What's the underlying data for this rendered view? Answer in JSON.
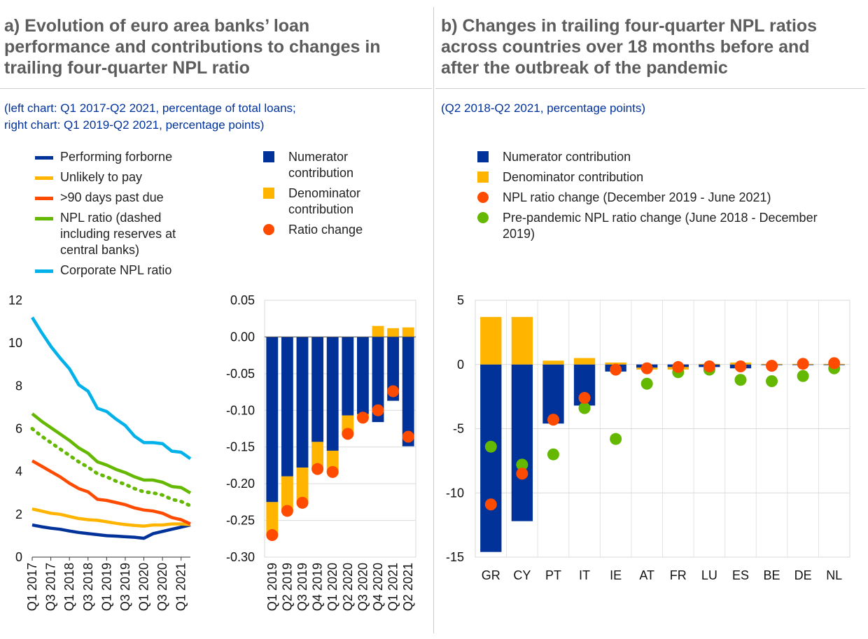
{
  "panel_a": {
    "title": "a) Evolution of euro area banks’ loan performance and contributions to changes in trailing four-quarter NPL ratio",
    "title_lines": [
      "a) Evolution of euro area banks’ loan",
      "performance and contributions to changes in",
      "trailing four-quarter NPL ratio"
    ],
    "subtitle_lines": [
      "(left chart: Q1 2017-Q2 2021, percentage of total loans;",
      "right chart: Q1 2019-Q2 2021, percentage points)"
    ],
    "legend_left": [
      {
        "label_lines": [
          "Performing forborne"
        ],
        "color": "#003299",
        "icon": "line-swatch-icon"
      },
      {
        "label_lines": [
          "Unlikely to pay"
        ],
        "color": "#ffb400",
        "icon": "line-swatch-icon"
      },
      {
        "label_lines": [
          ">90 days past due"
        ],
        "color": "#ff4b00",
        "icon": "line-swatch-icon"
      },
      {
        "label_lines": [
          "NPL ratio (dashed",
          "including reserves at",
          "central banks)"
        ],
        "color": "#65b800",
        "icon": "line-swatch-icon"
      },
      {
        "label_lines": [
          "Corporate NPL ratio"
        ],
        "color": "#00b1ea",
        "icon": "line-swatch-icon"
      }
    ],
    "legend_right": [
      {
        "label_lines": [
          "Numerator",
          "contribution"
        ],
        "color": "#003299",
        "icon": "square-swatch-icon"
      },
      {
        "label_lines": [
          "Denominator",
          "contribution"
        ],
        "color": "#ffb400",
        "icon": "square-swatch-icon"
      },
      {
        "label_lines": [
          "Ratio change"
        ],
        "color": "#ff4b00",
        "icon": "dot-swatch-icon"
      }
    ]
  },
  "panel_b": {
    "title": "b) Changes in trailing four-quarter NPL ratios across countries over 18 months before and after the outbreak of the pandemic",
    "title_lines": [
      "b) Changes in trailing four-quarter NPL ratios",
      "across countries over 18 months before and",
      "after the outbreak of the pandemic"
    ],
    "subtitle_lines": [
      "(Q2 2018-Q2 2021, percentage points)"
    ],
    "legend": [
      {
        "label_lines": [
          "Numerator contribution"
        ],
        "color": "#003299",
        "icon": "square-swatch-icon"
      },
      {
        "label_lines": [
          "Denominator contribution"
        ],
        "color": "#ffb400",
        "icon": "square-swatch-icon"
      },
      {
        "label_lines": [
          "NPL ratio change (December 2019 - June 2021)"
        ],
        "color": "#ff4b00",
        "icon": "dot-swatch-icon"
      },
      {
        "label_lines": [
          "Pre-pandemic NPL ratio change (June 2018 - December",
          "2019)"
        ],
        "color": "#65b800",
        "icon": "dot-swatch-icon"
      }
    ]
  },
  "chart_data": [
    {
      "id": "npl-lines",
      "type": "line",
      "title": "",
      "xlabel": "",
      "ylabel": "",
      "ylim": [
        0,
        12
      ],
      "yticks": [
        "0",
        "2",
        "4",
        "6",
        "8",
        "10",
        "12"
      ],
      "x": [
        "Q1 2017",
        "Q2 2017",
        "Q3 2017",
        "Q4 2017",
        "Q1 2018",
        "Q2 2018",
        "Q3 2018",
        "Q4 2018",
        "Q1 2019",
        "Q2 2019",
        "Q3 2019",
        "Q4 2019",
        "Q1 2020",
        "Q2 2020",
        "Q3 2020",
        "Q4 2020",
        "Q1 2021",
        "Q2 2021"
      ],
      "xtick_labels": [
        "Q1 2017",
        "Q3 2017",
        "Q1 2018",
        "Q3 2018",
        "Q1 2019",
        "Q3 2019",
        "Q1 2020",
        "Q3 2020",
        "Q1 2021"
      ],
      "series": [
        {
          "name": "Performing forborne",
          "color": "#003299",
          "dashed": false,
          "values": [
            1.5,
            1.42,
            1.35,
            1.3,
            1.22,
            1.15,
            1.1,
            1.05,
            1.0,
            0.98,
            0.95,
            0.93,
            0.88,
            1.1,
            1.2,
            1.3,
            1.4,
            1.5
          ]
        },
        {
          "name": "Unlikely to pay",
          "color": "#ffb400",
          "dashed": false,
          "values": [
            2.25,
            2.15,
            2.05,
            2.0,
            1.9,
            1.8,
            1.75,
            1.72,
            1.65,
            1.58,
            1.52,
            1.48,
            1.45,
            1.5,
            1.5,
            1.55,
            1.55,
            1.52
          ]
        },
        {
          "name": ">90 days past due",
          "color": "#ff4b00",
          "dashed": false,
          "values": [
            4.5,
            4.25,
            4.0,
            3.75,
            3.45,
            3.2,
            3.05,
            2.7,
            2.65,
            2.55,
            2.45,
            2.3,
            2.2,
            2.15,
            2.05,
            1.85,
            1.75,
            1.55
          ]
        },
        {
          "name": "NPL ratio",
          "color": "#65b800",
          "dashed": false,
          "values": [
            6.7,
            6.35,
            6.05,
            5.75,
            5.45,
            5.1,
            4.85,
            4.45,
            4.3,
            4.1,
            3.95,
            3.75,
            3.6,
            3.6,
            3.5,
            3.3,
            3.25,
            3.0
          ]
        },
        {
          "name": "NPL ratio including reserves at central banks",
          "color": "#65b800",
          "dashed": true,
          "values": [
            6.0,
            5.65,
            5.35,
            5.05,
            4.75,
            4.45,
            4.2,
            3.9,
            3.75,
            3.55,
            3.4,
            3.2,
            3.05,
            3.0,
            2.9,
            2.7,
            2.6,
            2.4
          ]
        },
        {
          "name": "Corporate NPL ratio",
          "color": "#00b1ea",
          "dashed": false,
          "values": [
            11.2,
            10.5,
            9.85,
            9.3,
            8.8,
            8.05,
            7.75,
            6.95,
            6.8,
            6.45,
            6.15,
            5.65,
            5.35,
            5.35,
            5.3,
            4.95,
            4.9,
            4.6
          ]
        }
      ]
    },
    {
      "id": "ratio-contrib-bars",
      "type": "bar",
      "title": "",
      "xlabel": "",
      "ylabel": "",
      "ylim": [
        -0.3,
        0.05
      ],
      "yticks": [
        "0.05",
        "0.00",
        "-0.05",
        "-0.10",
        "-0.15",
        "-0.20",
        "-0.25",
        "-0.30"
      ],
      "categories": [
        "Q1 2019",
        "Q2 2019",
        "Q3 2019",
        "Q4 2019",
        "Q1 2020",
        "Q2 2020",
        "Q3 2020",
        "Q4 2020",
        "Q1 2021",
        "Q2 2021"
      ],
      "series": [
        {
          "name": "Numerator contribution",
          "color": "#003299",
          "values": [
            -0.225,
            -0.19,
            -0.178,
            -0.143,
            -0.155,
            -0.107,
            -0.105,
            -0.116,
            -0.087,
            -0.149
          ]
        },
        {
          "name": "Denominator contribution",
          "color": "#ffb400",
          "values": [
            -0.045,
            -0.047,
            -0.048,
            -0.037,
            -0.03,
            -0.025,
            -0.005,
            0.015,
            0.012,
            0.013
          ]
        },
        {
          "name": "Ratio change",
          "color": "#ff4b00",
          "values": [
            -0.27,
            -0.237,
            -0.226,
            -0.18,
            -0.184,
            -0.132,
            -0.11,
            -0.1,
            -0.074,
            -0.136
          ]
        }
      ]
    },
    {
      "id": "country-npl-changes",
      "type": "bar",
      "title": "",
      "xlabel": "",
      "ylabel": "",
      "ylim": [
        -15,
        5
      ],
      "yticks": [
        "5",
        "0",
        "-5",
        "-10",
        "-15"
      ],
      "categories": [
        "GR",
        "CY",
        "PT",
        "IT",
        "IE",
        "AT",
        "FR",
        "LU",
        "ES",
        "BE",
        "DE",
        "NL"
      ],
      "series": [
        {
          "name": "Numerator contribution",
          "color": "#003299",
          "values": [
            -14.6,
            -12.2,
            -4.6,
            -3.2,
            -0.55,
            -0.25,
            -0.2,
            -0.2,
            -0.3,
            -0.05,
            -0.05,
            -0.05
          ]
        },
        {
          "name": "Denominator contribution",
          "color": "#ffb400",
          "values": [
            3.7,
            3.7,
            0.3,
            0.5,
            0.15,
            -0.15,
            -0.2,
            0.05,
            0.15,
            0.05,
            0.05,
            0.05
          ]
        },
        {
          "name": "NPL ratio change (December 2019 - June 2021)",
          "color": "#ff4b00",
          "values": [
            -10.9,
            -8.5,
            -4.3,
            -2.6,
            -0.4,
            -0.3,
            -0.2,
            -0.15,
            -0.15,
            -0.1,
            0.05,
            0.1
          ]
        },
        {
          "name": "Pre-pandemic NPL ratio change (June 2018 - December 2019)",
          "color": "#65b800",
          "values": [
            -6.4,
            -7.8,
            -7.0,
            -3.4,
            -5.8,
            -1.5,
            -0.6,
            -0.4,
            -1.2,
            -1.3,
            -0.9,
            -0.3
          ]
        }
      ]
    }
  ]
}
